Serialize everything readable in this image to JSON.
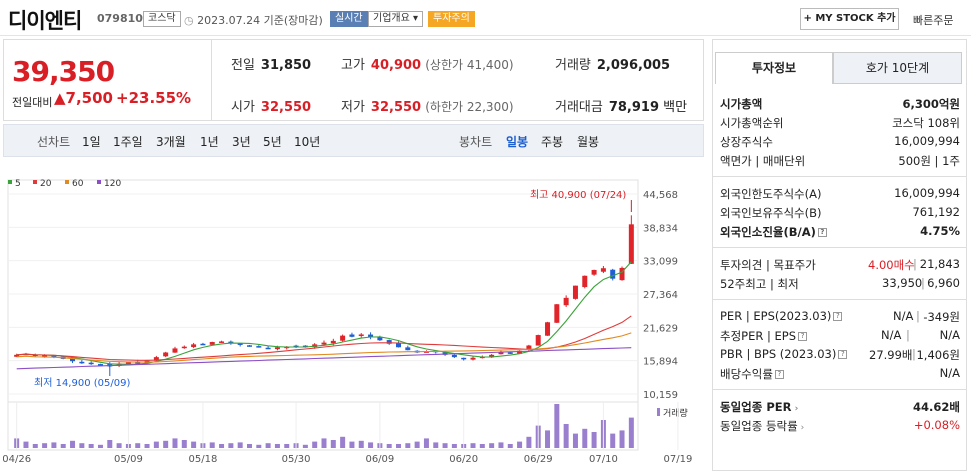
{
  "header": {
    "name": "디이엔티",
    "code": "079810",
    "market": "코스닥",
    "date": "2023.07.24 기준(장마감)",
    "realtime": "실시간",
    "overview": "기업개요",
    "warning": "투자주의",
    "mystock": "+ MY STOCK 추가",
    "quick_order": "빠른주문"
  },
  "summary": {
    "price": "39,350",
    "diff_label": "전일대비",
    "diff": "▲7,500",
    "rate": "+23.55%",
    "prev_label": "전일",
    "prev": "31,850",
    "high_label": "고가",
    "high": "40,900",
    "upper_limit": "(상한가 41,400)",
    "volume_label": "거래량",
    "volume": "2,096,005",
    "open_label": "시가",
    "open": "32,550",
    "low_label": "저가",
    "low": "32,550",
    "lower_limit": "(하한가 22,300)",
    "amount_label": "거래대금",
    "amount": "78,919",
    "amount_unit": "백만"
  },
  "periods": {
    "line_chart": "선차트",
    "d1": "1일",
    "w1": "1주일",
    "m3": "3개월",
    "y1": "1년",
    "y3": "3년",
    "y5": "5년",
    "y10": "10년",
    "candle_chart": "봉차트",
    "daily": "일봉",
    "weekly": "주봉",
    "monthly": "월봉"
  },
  "right_panel": {
    "tab_invest": "투자정보",
    "tab_quote": "호가 10단계",
    "market_cap_label": "시가총액",
    "market_cap": "6,300억원",
    "rank_label": "시가총액순위",
    "rank": "코스닥 108위",
    "shares_label": "상장주식수",
    "shares": "16,009,994",
    "par_label": "액면가 | 매매단위",
    "par": "500원 | 1주",
    "foreign_limit_label": "외국인한도주식수(A)",
    "foreign_limit": "16,009,994",
    "foreign_hold_label": "외국인보유주식수(B)",
    "foreign_hold": "761,192",
    "foreign_rate_label": "외국인소진율(B/A)",
    "foreign_rate": "4.75%",
    "opinion_label": "투자의견 | 목표주가",
    "opinion": "4.00매수",
    "target": "21,843",
    "w52_label": "52주최고 | 최저",
    "w52_high": "33,950",
    "w52_low": "6,960",
    "per_label": "PER | EPS(2023.03)",
    "per": "N/A",
    "eps": "-349원",
    "est_per_label": "추정PER | EPS",
    "est_per": "N/A",
    "est_eps": "N/A",
    "pbr_label": "PBR | BPS (2023.03)",
    "pbr": "27.99배",
    "bps": "1,406원",
    "div_label": "배당수익률",
    "div": "N/A",
    "ind_per_label": "동일업종 PER",
    "ind_per": "44.62배",
    "ind_rate_label": "동일업종 등락률",
    "ind_rate": "+0.08%"
  },
  "chart_data": {
    "type": "candlestick",
    "legend": [
      {
        "name": "5",
        "color": "#3aa33a"
      },
      {
        "name": "20",
        "color": "#e03b3b"
      },
      {
        "name": "60",
        "color": "#e08a20"
      },
      {
        "name": "120",
        "color": "#8b4fc6"
      }
    ],
    "y_ticks": [
      "44,568",
      "38,834",
      "33,099",
      "27,364",
      "21,629",
      "15,894",
      "10,159"
    ],
    "ylim": [
      10159,
      44568
    ],
    "x_ticks": [
      "04/26",
      "05/09",
      "05/18",
      "05/30",
      "06/09",
      "06/20",
      "06/29",
      "07/10",
      "07/19"
    ],
    "max_label": "최고 40,900 (07/24)",
    "min_label": "최저 14,900 (05/09)",
    "volume_label": "거래량",
    "closes": [
      16900,
      17100,
      16700,
      16800,
      16600,
      16200,
      15800,
      15600,
      15300,
      15200,
      14900,
      15400,
      15600,
      15400,
      15900,
      16500,
      17300,
      18000,
      18300,
      18700,
      18600,
      19100,
      19200,
      19000,
      18600,
      18400,
      18300,
      18000,
      18200,
      18300,
      18400,
      18300,
      18700,
      19000,
      19300,
      20200,
      20000,
      20400,
      19900,
      19400,
      18800,
      18200,
      17700,
      17300,
      17500,
      17400,
      16900,
      16500,
      16200,
      16400,
      16600,
      16900,
      17300,
      17100,
      17600,
      18500,
      20300,
      22500,
      25600,
      26700,
      28800,
      30500,
      31500,
      31800,
      30000,
      31850,
      39350
    ],
    "volumes": [
      12,
      8,
      5,
      6,
      7,
      5,
      9,
      6,
      5,
      4,
      10,
      6,
      5,
      6,
      5,
      8,
      9,
      12,
      10,
      8,
      6,
      7,
      5,
      6,
      7,
      5,
      4,
      6,
      5,
      5,
      6,
      4,
      8,
      12,
      10,
      14,
      8,
      9,
      7,
      6,
      5,
      5,
      6,
      8,
      12,
      7,
      6,
      5,
      5,
      6,
      5,
      6,
      7,
      5,
      8,
      14,
      28,
      22,
      55,
      30,
      18,
      24,
      20,
      35,
      18,
      22,
      38
    ]
  }
}
